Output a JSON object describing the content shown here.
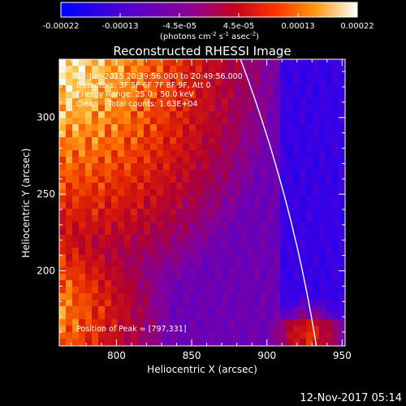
{
  "chart_data": {
    "type": "heatmap",
    "title": "Reconstructed RHESSI Image",
    "xlabel": "Heliocentric X (arcsec)",
    "ylabel": "Heliocentric Y (arcsec)",
    "xlim": [
      762,
      952
    ],
    "ylim": [
      151,
      338
    ],
    "xticks": [
      800,
      850,
      900,
      950
    ],
    "yticks": [
      200,
      250,
      300
    ],
    "colorbar": {
      "min": -0.00022,
      "max": 0.00022,
      "ticks": [
        "-0.00022",
        "-0.00013",
        "-4.5e-05",
        "4.5e-05",
        "0.00013",
        "0.00022"
      ],
      "label_main": "(photons cm",
      "label_exp1": "-2",
      "label_mid1": " s",
      "label_exp2": "-1",
      "label_mid2": " asec",
      "label_exp3": "-2",
      "label_end": ")",
      "colormap": [
        "#0000ff",
        "#4000e0",
        "#8000a0",
        "#b00030",
        "#e02000",
        "#ff7000",
        "#ffc040",
        "#ffffff"
      ]
    },
    "annotations": [
      "12-Jun-2015 20:39:56.000 to 20:49:56.000",
      "Detectors: 3F 5F 6F 7F 8F 9F, Att 0",
      "Energy Range: 25.0 - 50.0 keV",
      "Clean    Total counts: 1.63E+04"
    ],
    "peak_label": "Position of Peak = [797,331]",
    "peak": [
      797,
      331
    ],
    "limb_color": "#ffffff"
  },
  "footer": {
    "timestamp": "12-Nov-2017 05:14"
  }
}
